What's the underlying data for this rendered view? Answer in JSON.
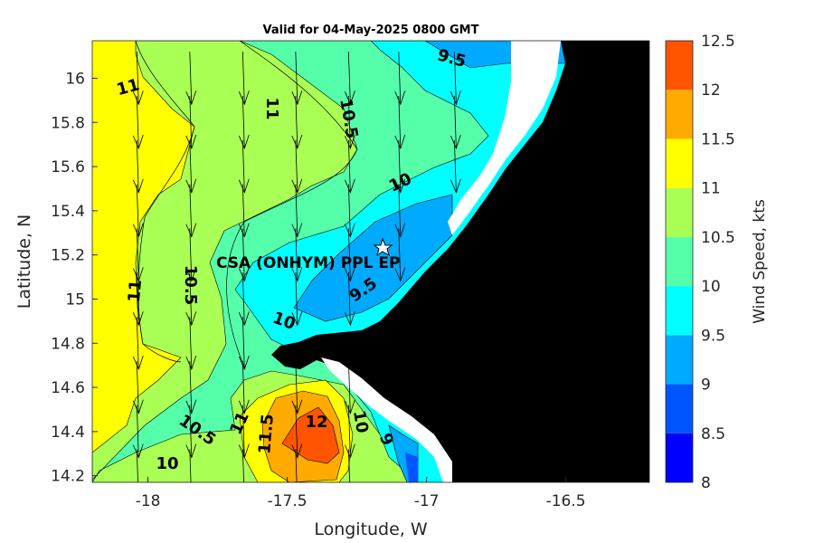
{
  "chart_data": {
    "type": "heatmap",
    "title": "Valid for 04-May-2025 0800 GMT",
    "xlabel": "Longitude, W",
    "ylabel": "Latitude, N",
    "xlim": [
      -18.2,
      -16.2
    ],
    "ylim": [
      14.17,
      16.17
    ],
    "x_ticks": [
      -18,
      -17.5,
      -17,
      -16.5
    ],
    "x_tick_labels": [
      "-18",
      "-17.5",
      "-17",
      "-16.5"
    ],
    "y_ticks": [
      14.2,
      14.4,
      14.6,
      14.8,
      15,
      15.2,
      15.4,
      15.6,
      15.8,
      16
    ],
    "y_tick_labels": [
      "14.2",
      "14.4",
      "14.6",
      "14.8",
      "15",
      "15.2",
      "15.4",
      "15.6",
      "15.8",
      "16"
    ],
    "colorbar": {
      "label": "Wind Speed, kts",
      "levels": [
        8,
        8.5,
        9,
        9.5,
        10,
        10.5,
        11,
        11.5,
        12,
        12.5
      ],
      "tick_labels": [
        "8",
        "8.5",
        "9",
        "9.5",
        "10",
        "10.5",
        "11",
        "11.5",
        "12",
        "12.5"
      ],
      "colors": [
        "#0000ff",
        "#0055ff",
        "#00aaff",
        "#00ffff",
        "#55ffaa",
        "#aaff55",
        "#ffff00",
        "#ffaa00",
        "#ff5500"
      ]
    },
    "contour_labels": [
      "11",
      "11",
      "10.5",
      "9.5",
      "10",
      "10.5",
      "11",
      "9.5",
      "10",
      "10.5",
      "11",
      "11.5",
      "12",
      "10",
      "9",
      "10"
    ],
    "station": {
      "name": "CSA (ONHYM) PPL EP",
      "lon": -17.12,
      "lat": 15.23
    },
    "wind_direction": "from north (arrows pointing south)",
    "land_color": "#000000"
  }
}
